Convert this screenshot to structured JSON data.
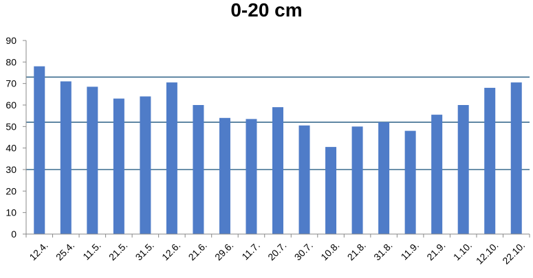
{
  "chart_data": {
    "type": "bar",
    "title": "0-20 cm",
    "xlabel": "",
    "ylabel": "",
    "ylim": [
      0,
      90
    ],
    "yticks": [
      0,
      10,
      20,
      30,
      40,
      50,
      60,
      70,
      80,
      90
    ],
    "categories": [
      "12.4.",
      "25.4.",
      "11.5.",
      "21.5.",
      "31.5.",
      "12.6.",
      "21.6.",
      "29.6.",
      "11.7.",
      "20.7.",
      "30.7.",
      "10.8.",
      "21.8.",
      "31.8.",
      "11.9.",
      "21.9.",
      "1.10.",
      "12.10.",
      "22.10."
    ],
    "values": [
      78,
      71,
      68.5,
      63,
      64,
      70.5,
      60,
      54,
      53.5,
      59,
      50.5,
      40.5,
      50,
      52,
      48,
      55.5,
      60,
      68,
      70.5
    ],
    "reference_lines": [
      73,
      52,
      30
    ],
    "grid": false,
    "colors": {
      "bar": "#4F7CC8",
      "reference_line": "#3A6B8E",
      "axis": "#888888"
    }
  }
}
